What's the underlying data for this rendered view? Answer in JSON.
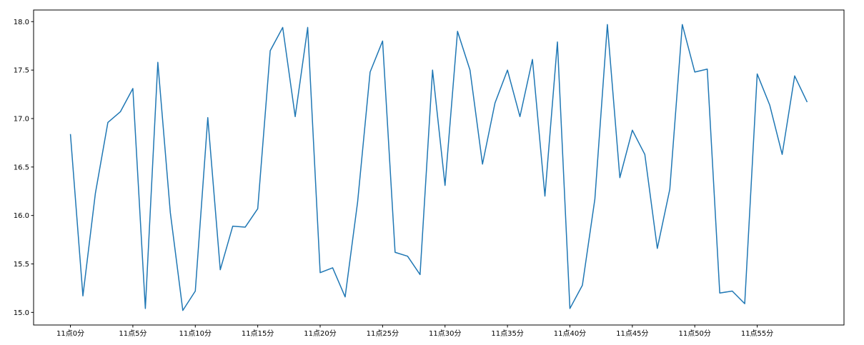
{
  "chart_data": {
    "type": "line",
    "categories": [
      "11点0分",
      null,
      null,
      null,
      null,
      "11点5分",
      null,
      null,
      null,
      null,
      "11点10分",
      null,
      null,
      null,
      null,
      "11点15分",
      null,
      null,
      null,
      null,
      "11点20分",
      null,
      null,
      null,
      null,
      "11点25分",
      null,
      null,
      null,
      null,
      "11点30分",
      null,
      null,
      null,
      null,
      "11点35分",
      null,
      null,
      null,
      null,
      "11点40分",
      null,
      null,
      null,
      null,
      "11点45分",
      null,
      null,
      null,
      null,
      "11点50分",
      null,
      null,
      null,
      null,
      "11点55分",
      null,
      null,
      null,
      null
    ],
    "series": [
      {
        "color": "#1f77b4",
        "values": [
          16.84,
          15.17,
          16.23,
          16.96,
          17.07,
          17.31,
          15.04,
          17.58,
          16.03,
          15.02,
          15.22,
          17.01,
          15.44,
          15.89,
          15.88,
          16.07,
          17.7,
          17.94,
          17.02,
          17.94,
          15.41,
          15.46,
          15.16,
          16.14,
          17.48,
          17.8,
          15.62,
          15.58,
          15.39,
          17.5,
          16.31,
          17.9,
          17.5,
          16.53,
          17.16,
          17.5,
          17.02,
          17.61,
          16.2,
          17.79,
          15.04,
          15.28,
          16.17,
          17.97,
          16.39,
          16.88,
          16.63,
          15.66,
          16.27,
          17.97,
          17.48,
          17.51,
          15.2,
          15.22,
          15.09,
          17.46,
          17.14,
          16.63,
          17.44,
          17.17
        ]
      }
    ],
    "ylim": [
      14.87,
      18.12
    ],
    "yticks": [
      {
        "value": 15,
        "label": "15.0"
      },
      15.5,
      {
        "value": 16,
        "label": "16.0"
      },
      16.5,
      {
        "value": 17,
        "label": "17.0"
      },
      17.5,
      {
        "value": 18,
        "label": "18.0"
      }
    ]
  }
}
